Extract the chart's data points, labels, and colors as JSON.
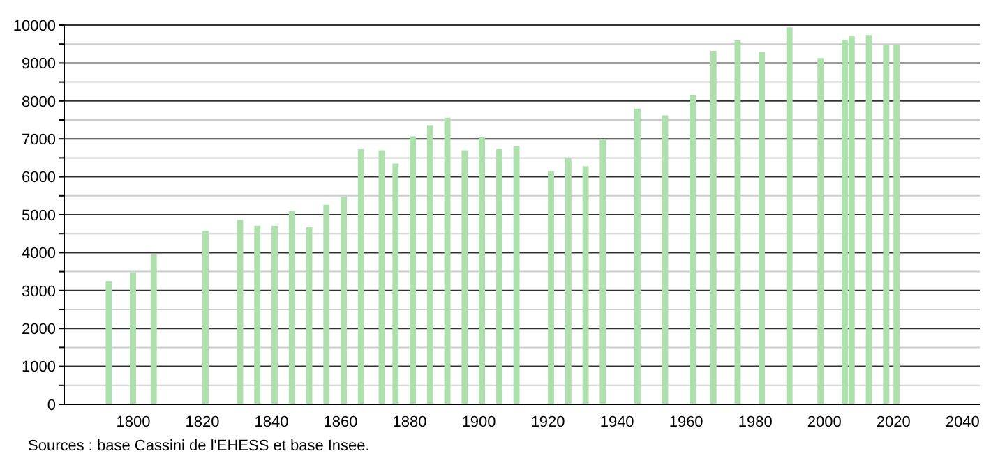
{
  "chart_data": {
    "type": "bar",
    "x": [
      1793,
      1800,
      1806,
      1821,
      1831,
      1836,
      1841,
      1846,
      1851,
      1856,
      1861,
      1866,
      1872,
      1876,
      1881,
      1886,
      1891,
      1896,
      1901,
      1906,
      1911,
      1921,
      1926,
      1931,
      1936,
      1946,
      1954,
      1962,
      1968,
      1975,
      1982,
      1990,
      1999,
      2006,
      2008,
      2013,
      2018,
      2021
    ],
    "values": [
      3250,
      3480,
      3950,
      4570,
      4860,
      4710,
      4710,
      5090,
      4670,
      5260,
      5480,
      6730,
      6700,
      6350,
      7070,
      7350,
      7560,
      6700,
      7050,
      6730,
      6800,
      6150,
      6490,
      6280,
      7000,
      7800,
      7620,
      8150,
      9320,
      9600,
      9290,
      9940,
      9130,
      9610,
      9700,
      9740,
      9480,
      9480
    ],
    "color": "#aee0ae",
    "xlim": [
      1780,
      2045
    ],
    "xticks": [
      1800,
      1820,
      1840,
      1860,
      1880,
      1900,
      1920,
      1940,
      1960,
      1980,
      2000,
      2020,
      2040
    ],
    "ylim": [
      0,
      10000
    ],
    "yticks": [
      0,
      {
        "value": 500,
        "label": null
      },
      1000,
      {
        "value": 1500,
        "label": null
      },
      2000,
      {
        "value": 2500,
        "label": null
      },
      3000,
      {
        "value": 3500,
        "label": null
      },
      4000,
      {
        "value": 4500,
        "label": null
      },
      5000,
      {
        "value": 5500,
        "label": null
      },
      6000,
      {
        "value": 6500,
        "label": null
      },
      7000,
      {
        "value": 7500,
        "label": null
      },
      8000,
      {
        "value": 8500,
        "label": null
      },
      9000,
      {
        "value": 9500,
        "label": null
      },
      10000
    ],
    "grid": "y",
    "annotations": [
      "Sources : base Cassini de l'EHESS et base Insee."
    ]
  }
}
